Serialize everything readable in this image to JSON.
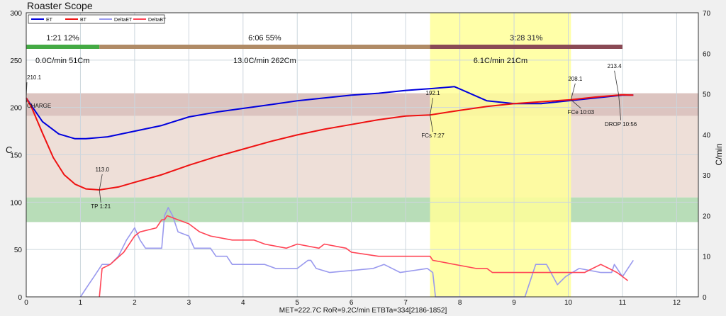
{
  "app": {
    "title": "Roaster Scope"
  },
  "colors": {
    "et": "#0000dd",
    "bt": "#ee1111",
    "delta_et": "#9999ee",
    "delta_bt": "#ff4455",
    "dry_bar": "#44aa44",
    "mid_bar": "#b08b66",
    "dev_bar": "#8a4a55",
    "dev_band": "#ffff99",
    "upper_band": "#dcc4c0",
    "green_band": "#b8ddb8"
  },
  "chart_data": {
    "type": "line",
    "title": "Roaster Scope",
    "xlabel": "",
    "ylabel": "C",
    "y2label": "C/min",
    "xlim": [
      0,
      12.4
    ],
    "ylim": [
      0,
      300
    ],
    "y2lim": [
      0,
      70
    ],
    "x_ticks": [
      "0",
      "1",
      "2",
      "3",
      "4",
      "5",
      "6",
      "7",
      "8",
      "9",
      "10",
      "11",
      "12"
    ],
    "y_ticks": [
      "0",
      "50",
      "100",
      "150",
      "200",
      "250",
      "300"
    ],
    "y2_ticks": [
      "0",
      "10",
      "20",
      "30",
      "40",
      "50",
      "60",
      "70"
    ],
    "legend": {
      "placement": "top-left",
      "entries": [
        {
          "key": "et",
          "label": "ET"
        },
        {
          "key": "bt",
          "label": "BT"
        },
        {
          "key": "delta_et",
          "label": "DeltaET"
        },
        {
          "key": "delta_bt",
          "label": "DeltaBT"
        }
      ]
    },
    "bands": {
      "upper": {
        "y": [
          191,
          215
        ]
      },
      "pale": {
        "y": [
          105,
          191
        ]
      },
      "green": {
        "y": [
          79,
          105
        ]
      },
      "development_x": [
        7.45,
        10.05
      ]
    },
    "phases": [
      {
        "label": "1:21  12%",
        "x": [
          0,
          1.35
        ],
        "color_key": "dry_bar"
      },
      {
        "label": "6:06  55%",
        "x": [
          1.35,
          7.45
        ],
        "color_key": "mid_bar"
      },
      {
        "label": "3:28  31%",
        "x": [
          7.45,
          11.0
        ],
        "color_key": "dev_bar"
      }
    ],
    "phase_stats": [
      {
        "label": "0.0C/min  51Cm",
        "x": 0.67
      },
      {
        "label": "13.0C/min  262Cm",
        "x": 4.4
      },
      {
        "label": "6.1C/min  21Cm",
        "x": 8.75
      }
    ],
    "series": [
      {
        "name": "ET",
        "color_key": "et",
        "axis": "left",
        "width": 2,
        "points": [
          [
            0,
            210
          ],
          [
            0.3,
            185
          ],
          [
            0.6,
            172
          ],
          [
            0.9,
            167
          ],
          [
            1.1,
            167
          ],
          [
            1.5,
            169
          ],
          [
            2.0,
            175
          ],
          [
            2.5,
            181
          ],
          [
            3.0,
            190
          ],
          [
            3.5,
            195
          ],
          [
            4.0,
            199
          ],
          [
            4.5,
            203
          ],
          [
            5.0,
            207
          ],
          [
            5.5,
            210
          ],
          [
            6.0,
            213
          ],
          [
            6.5,
            215
          ],
          [
            7.0,
            218
          ],
          [
            7.5,
            220
          ],
          [
            7.9,
            222
          ],
          [
            8.1,
            217
          ],
          [
            8.5,
            207
          ],
          [
            9.0,
            204
          ],
          [
            9.5,
            204
          ],
          [
            10.0,
            207
          ],
          [
            10.5,
            210
          ],
          [
            11.0,
            213
          ],
          [
            11.2,
            213
          ]
        ]
      },
      {
        "name": "BT",
        "color_key": "bt",
        "axis": "left",
        "width": 2,
        "points": [
          [
            0,
            210
          ],
          [
            0.1,
            200
          ],
          [
            0.3,
            173
          ],
          [
            0.5,
            147
          ],
          [
            0.7,
            129
          ],
          [
            0.9,
            119
          ],
          [
            1.1,
            114
          ],
          [
            1.35,
            113
          ],
          [
            1.7,
            116
          ],
          [
            2.0,
            121
          ],
          [
            2.5,
            129
          ],
          [
            3.0,
            139
          ],
          [
            3.5,
            148
          ],
          [
            4.0,
            156
          ],
          [
            4.5,
            164
          ],
          [
            5.0,
            171
          ],
          [
            5.5,
            177
          ],
          [
            6.0,
            182
          ],
          [
            6.5,
            187
          ],
          [
            7.0,
            191
          ],
          [
            7.45,
            192.1
          ],
          [
            8.0,
            197
          ],
          [
            8.5,
            201
          ],
          [
            9.0,
            204
          ],
          [
            9.5,
            206
          ],
          [
            10.05,
            208.1
          ],
          [
            10.5,
            211
          ],
          [
            11.0,
            213.4
          ],
          [
            11.2,
            213
          ]
        ]
      },
      {
        "name": "DeltaET",
        "color_key": "delta_et",
        "axis": "right",
        "width": 1.6,
        "points": [
          [
            1.0,
            0
          ],
          [
            1.1,
            2
          ],
          [
            1.25,
            5
          ],
          [
            1.4,
            8
          ],
          [
            1.55,
            8
          ],
          [
            1.7,
            10
          ],
          [
            1.85,
            14
          ],
          [
            2.0,
            17
          ],
          [
            2.1,
            14
          ],
          [
            2.2,
            12
          ],
          [
            2.5,
            12
          ],
          [
            2.55,
            20
          ],
          [
            2.62,
            22
          ],
          [
            2.7,
            20
          ],
          [
            2.8,
            16
          ],
          [
            3.0,
            15
          ],
          [
            3.1,
            12
          ],
          [
            3.4,
            12
          ],
          [
            3.5,
            10
          ],
          [
            3.7,
            10
          ],
          [
            3.8,
            8
          ],
          [
            4.4,
            8
          ],
          [
            4.6,
            7
          ],
          [
            5.0,
            7
          ],
          [
            5.2,
            9
          ],
          [
            5.25,
            9
          ],
          [
            5.35,
            7
          ],
          [
            5.6,
            6
          ],
          [
            6.4,
            7
          ],
          [
            6.6,
            8
          ],
          [
            6.9,
            6
          ],
          [
            7.4,
            7
          ],
          [
            7.5,
            6
          ],
          [
            7.55,
            0
          ],
          [
            9.2,
            0
          ],
          [
            9.4,
            8
          ],
          [
            9.6,
            8
          ],
          [
            9.8,
            3
          ],
          [
            9.95,
            5
          ],
          [
            10.2,
            7
          ],
          [
            10.6,
            6
          ],
          [
            10.8,
            6
          ],
          [
            10.85,
            8
          ],
          [
            10.95,
            6
          ],
          [
            11.0,
            5
          ],
          [
            11.2,
            9
          ]
        ]
      },
      {
        "name": "DeltaBT",
        "color_key": "delta_bt",
        "axis": "right",
        "width": 1.6,
        "points": [
          [
            1.35,
            0
          ],
          [
            1.4,
            7
          ],
          [
            1.55,
            8
          ],
          [
            1.8,
            11
          ],
          [
            2.0,
            15
          ],
          [
            2.1,
            16
          ],
          [
            2.4,
            17
          ],
          [
            2.5,
            19
          ],
          [
            2.55,
            19
          ],
          [
            2.6,
            20
          ],
          [
            2.8,
            19
          ],
          [
            3.0,
            18
          ],
          [
            3.2,
            16
          ],
          [
            3.4,
            15
          ],
          [
            3.8,
            14
          ],
          [
            4.2,
            14
          ],
          [
            4.4,
            13
          ],
          [
            4.8,
            12
          ],
          [
            5.0,
            13
          ],
          [
            5.4,
            12
          ],
          [
            5.5,
            13
          ],
          [
            5.9,
            12
          ],
          [
            6.0,
            11
          ],
          [
            6.5,
            10
          ],
          [
            7.0,
            10
          ],
          [
            7.45,
            10
          ],
          [
            7.5,
            9
          ],
          [
            8.3,
            7
          ],
          [
            8.5,
            7
          ],
          [
            8.6,
            6
          ],
          [
            9.0,
            6
          ],
          [
            10.0,
            6
          ],
          [
            10.3,
            6
          ],
          [
            10.45,
            7
          ],
          [
            10.6,
            8
          ],
          [
            10.75,
            7
          ],
          [
            10.9,
            6
          ],
          [
            11.0,
            5
          ],
          [
            11.1,
            4
          ]
        ]
      }
    ],
    "events": [
      {
        "label": "CHARGE",
        "value_label": "210.1",
        "x": 0,
        "y": 210.1
      },
      {
        "label": "TP 1:21",
        "value_label": "113.0",
        "x": 1.35,
        "y": 113.0
      },
      {
        "label": "FCs 7:27",
        "value_label": "192.1",
        "x": 7.45,
        "y": 192.1
      },
      {
        "label": "FCe 10:03",
        "value_label": "208.1",
        "x": 10.05,
        "y": 208.1
      },
      {
        "label": "DROP 10:56",
        "value_label": "213.4",
        "x": 10.93,
        "y": 213.4
      }
    ],
    "status": "MET=222.7C   RoR=9.2C/min   ETBTa=334[2186-1852]"
  }
}
